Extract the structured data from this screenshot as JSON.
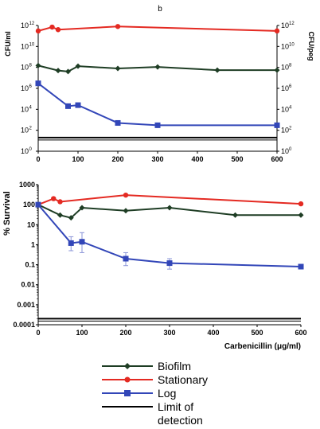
{
  "figure_label": "b",
  "chart_data": [
    {
      "type": "line",
      "title": "",
      "ylabel_left": "CFU/ml",
      "ylabel_right": "CFU/peg",
      "xlabel": "",
      "yscale": "log",
      "xlim": [
        0,
        600
      ],
      "ylim": [
        1,
        1000000000000
      ],
      "x_ticks": [
        "0",
        "100",
        "200",
        "300",
        "400",
        "500",
        "600"
      ],
      "y_ticks": [
        {
          "base": "10",
          "exp": "0"
        },
        {
          "base": "10",
          "exp": "2"
        },
        {
          "base": "10",
          "exp": "4"
        },
        {
          "base": "10",
          "exp": "6"
        },
        {
          "base": "10",
          "exp": "8"
        },
        {
          "base": "10",
          "exp": "10"
        },
        {
          "base": "10",
          "exp": "12"
        }
      ],
      "grid": false,
      "series": [
        {
          "name": "Biofilm",
          "color": "#1e3d24",
          "marker": "diamond",
          "axis": "right",
          "x": [
            0,
            50,
            75,
            100,
            200,
            300,
            450,
            600
          ],
          "y": [
            150000000,
            50000000,
            40000000,
            130000000,
            80000000,
            110000000,
            55000000,
            55000000
          ]
        },
        {
          "name": "Stationary",
          "color": "#e42a22",
          "marker": "circle",
          "axis": "left",
          "x": [
            0,
            35,
            50,
            200,
            600
          ],
          "y": [
            300000000000,
            700000000000,
            400000000000,
            800000000000,
            300000000000
          ]
        },
        {
          "name": "Log",
          "color": "#3246b8",
          "marker": "square",
          "axis": "left",
          "x": [
            0,
            75,
            100,
            200,
            300,
            600
          ],
          "y": [
            3000000,
            20000,
            25000,
            500,
            300,
            300
          ]
        },
        {
          "name": "Limit of detection",
          "color": "#000000",
          "marker": "none",
          "axis": "left",
          "x": [
            0,
            600
          ],
          "y": [
            20,
            20
          ]
        }
      ]
    },
    {
      "type": "line",
      "title": "",
      "ylabel": "% Survival",
      "xlabel": "Carbenicillin (μg/ml)",
      "yscale": "log",
      "xlim": [
        0,
        600
      ],
      "ylim": [
        0.0001,
        1000
      ],
      "x_ticks": [
        "0",
        "100",
        "200",
        "300",
        "400",
        "500",
        "600"
      ],
      "y_ticks": [
        "0.0001",
        "0.001",
        "0.01",
        "0.1",
        "1",
        "10",
        "100",
        "1000"
      ],
      "grid": false,
      "series": [
        {
          "name": "Biofilm",
          "color": "#1e3d24",
          "marker": "diamond",
          "x": [
            0,
            50,
            75,
            100,
            200,
            300,
            450,
            600
          ],
          "y": [
            100,
            30,
            22,
            70,
            50,
            70,
            30,
            30
          ]
        },
        {
          "name": "Stationary",
          "color": "#e42a22",
          "marker": "circle",
          "x": [
            0,
            35,
            50,
            200,
            600
          ],
          "y": [
            100,
            200,
            140,
            300,
            110
          ]
        },
        {
          "name": "Log",
          "color": "#3246b8",
          "marker": "square",
          "x": [
            0,
            75,
            100,
            200,
            300,
            600
          ],
          "y": [
            100,
            1.2,
            1.4,
            0.2,
            0.12,
            0.08
          ],
          "error_high": [
            null,
            2.5,
            4,
            0.4,
            0.2,
            null
          ],
          "error_low": [
            null,
            0.5,
            0.4,
            0.09,
            0.06,
            null
          ]
        },
        {
          "name": "Limit of detection",
          "color": "#000000",
          "marker": "none",
          "x": [
            0,
            600
          ],
          "y": [
            0.0002,
            0.0002
          ]
        }
      ]
    }
  ],
  "legend": [
    {
      "label": "Biofilm",
      "color": "#1e3d24",
      "marker": "diamond"
    },
    {
      "label": "Stationary",
      "color": "#e42a22",
      "marker": "circle"
    },
    {
      "label": "Log",
      "color": "#3246b8",
      "marker": "square"
    },
    {
      "label": "Limit of",
      "color": "#000000",
      "marker": "none"
    },
    {
      "label": "detection",
      "color": "#000000",
      "marker": "blank"
    }
  ]
}
